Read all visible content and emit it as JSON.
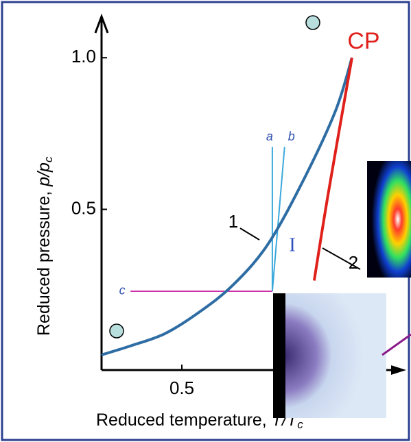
{
  "chart_data": {
    "type": "line",
    "x_label": {
      "text": "Reduced temperature, ",
      "symbol": "T/T",
      "subscript": "c"
    },
    "y_label": {
      "text": "Reduced pressure, ",
      "symbol": "p/p",
      "subscript": "c"
    },
    "xlim": [
      0.264,
      1.105
    ],
    "ylim": [
      -0.03,
      1.1
    ],
    "xticks": [
      0.5
    ],
    "yticks": [
      0.5,
      {
        "value": 1,
        "label": "1.0"
      }
    ],
    "series": [
      {
        "name": "1",
        "color": "#2e6da4",
        "x": [
          0.264,
          0.35,
          0.45,
          0.55,
          0.65,
          0.75,
          0.85,
          0.95,
          1.0
        ],
        "values": [
          0.02,
          0.05,
          0.09,
          0.16,
          0.25,
          0.38,
          0.58,
          0.82,
          1.0
        ]
      },
      {
        "name": "2",
        "color": "#e0201b",
        "x": [
          0.889,
          0.93,
          1.0
        ],
        "values": [
          0.265,
          0.55,
          1.0
        ]
      }
    ],
    "guides": [
      {
        "label": "a",
        "color": "#3aa8dc",
        "x": [
          0.766,
          0.766
        ],
        "values": [
          0.23,
          0.706
        ]
      },
      {
        "label": "b",
        "color": "#3aa8dc",
        "x": [
          0.766,
          0.802
        ],
        "values": [
          0.23,
          0.706
        ]
      },
      {
        "label": "c",
        "color": "#cc33aa",
        "x": [
          0.349,
          0.766
        ],
        "values": [
          0.23,
          0.23
        ]
      }
    ],
    "annotations": {
      "critical_point": "CP",
      "region": "I"
    }
  }
}
